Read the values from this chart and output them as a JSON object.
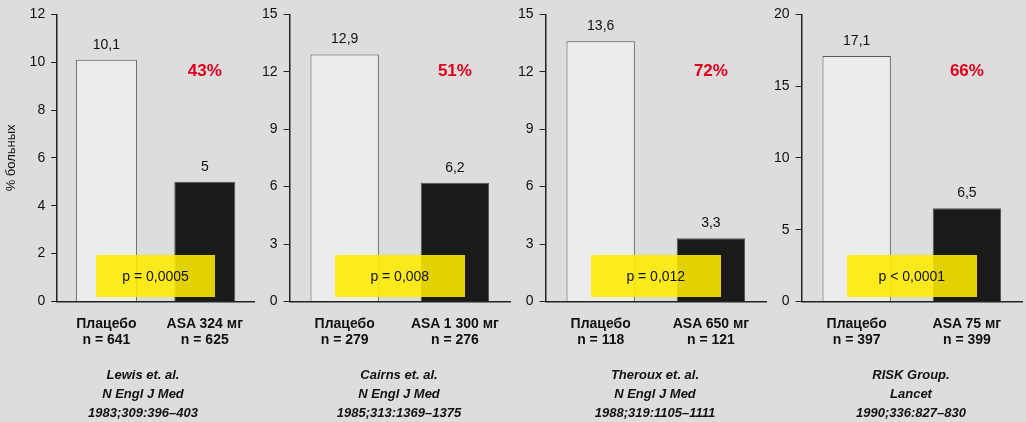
{
  "chart_data": [
    {
      "type": "bar",
      "ylabel": "% больных",
      "categories": [
        "Плацебо\nn = 641",
        "ASA 324 мг\nn = 625"
      ],
      "values": [
        10.1,
        5
      ],
      "value_labels": [
        "10,1",
        "5"
      ],
      "colors": [
        "#ececec",
        "#1a1a1a"
      ],
      "ylim": [
        0,
        12
      ],
      "yticks": [
        0,
        2,
        4,
        6,
        8,
        10,
        12
      ],
      "grid": false,
      "legend": false,
      "annotations": [
        "43%",
        "p = 0,0005",
        "Lewis et. al.\nN Engl J Med\n1983;309:396–403"
      ]
    },
    {
      "type": "bar",
      "categories": [
        "Плацебо\nn = 279",
        "ASA 1 300 мг\nn = 276"
      ],
      "values": [
        12.9,
        6.2
      ],
      "value_labels": [
        "12,9",
        "6,2"
      ],
      "colors": [
        "#ececec",
        "#1a1a1a"
      ],
      "ylim": [
        0,
        15
      ],
      "yticks": [
        0,
        3,
        6,
        9,
        12,
        15
      ],
      "grid": false,
      "legend": false,
      "annotations": [
        "51%",
        "p = 0,008",
        "Cairns et. al.\nN Engl J Med\n1985;313:1369–1375"
      ]
    },
    {
      "type": "bar",
      "categories": [
        "Плацебо\nn = 118",
        "ASA 650 мг\nn = 121"
      ],
      "values": [
        13.6,
        3.3
      ],
      "value_labels": [
        "13,6",
        "3,3"
      ],
      "colors": [
        "#ececec",
        "#1a1a1a"
      ],
      "ylim": [
        0,
        15
      ],
      "yticks": [
        0,
        3,
        6,
        9,
        12,
        15
      ],
      "grid": false,
      "legend": false,
      "annotations": [
        "72%",
        "p = 0,012",
        "Theroux et. al.\nN Engl J Med\n1988;319:1105–1111"
      ]
    },
    {
      "type": "bar",
      "categories": [
        "Плацебо\nn = 397",
        "ASA 75 мг\nn = 399"
      ],
      "values": [
        17.1,
        6.5
      ],
      "value_labels": [
        "17,1",
        "6,5"
      ],
      "colors": [
        "#ececec",
        "#1a1a1a"
      ],
      "ylim": [
        0,
        20
      ],
      "yticks": [
        0,
        5,
        10,
        15,
        20
      ],
      "grid": false,
      "legend": false,
      "annotations": [
        "66%",
        "p < 0,0001",
        "RISK Group.\nLancet\n1990;336:827–830"
      ]
    }
  ]
}
